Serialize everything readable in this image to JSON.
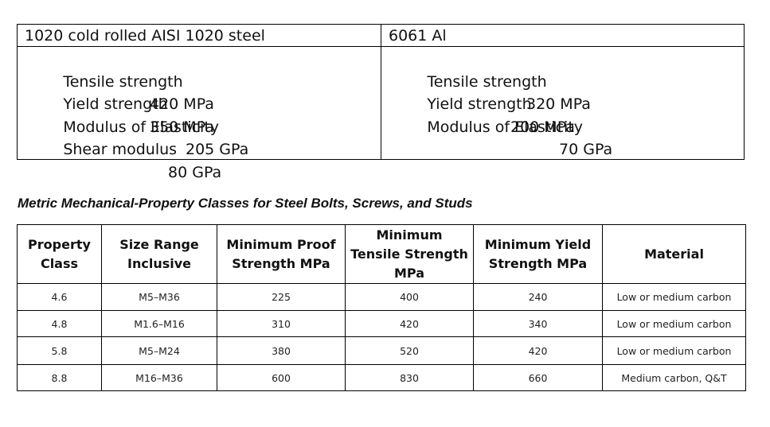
{
  "materials": [
    {
      "title": "1020 cold rolled AISI 1020 steel",
      "properties": [
        {
          "label": "Tensile strength",
          "value": "420 MPa"
        },
        {
          "label": "Yield strength",
          "value": "350 MPa"
        },
        {
          "label": "Modulus of Elasticity",
          "value": "205 GPa"
        },
        {
          "label": "Shear modulus",
          "value": "80 GPa"
        }
      ]
    },
    {
      "title": "6061 Al",
      "properties": [
        {
          "label": "Tensile strength",
          "value": "320 MPa"
        },
        {
          "label": "Yield strength",
          "value": "200 MPa"
        },
        {
          "label": "Modulus of Elasticity",
          "value": "70 GPa"
        }
      ]
    }
  ],
  "bolt_section": {
    "title": "Metric Mechanical-Property Classes for Steel Bolts, Screws, and Studs",
    "headers": [
      [
        "Property",
        "Class"
      ],
      [
        "Size Range",
        "Inclusive"
      ],
      [
        "Minimum Proof",
        "Strength MPa"
      ],
      [
        "Minimum",
        "Tensile Strength",
        "MPa"
      ],
      [
        "Minimum Yield",
        "Strength MPa"
      ],
      [
        "Material"
      ]
    ],
    "rows": [
      [
        "4.6",
        "M5–M36",
        "225",
        "400",
        "240",
        "Low or medium carbon"
      ],
      [
        "4.8",
        "M1.6–M16",
        "310",
        "420",
        "340",
        "Low or medium carbon"
      ],
      [
        "5.8",
        "M5–M24",
        "380",
        "520",
        "420",
        "Low or medium carbon"
      ],
      [
        "8.8",
        "M16–M36",
        "600",
        "830",
        "660",
        "Medium carbon, Q&T"
      ]
    ]
  }
}
